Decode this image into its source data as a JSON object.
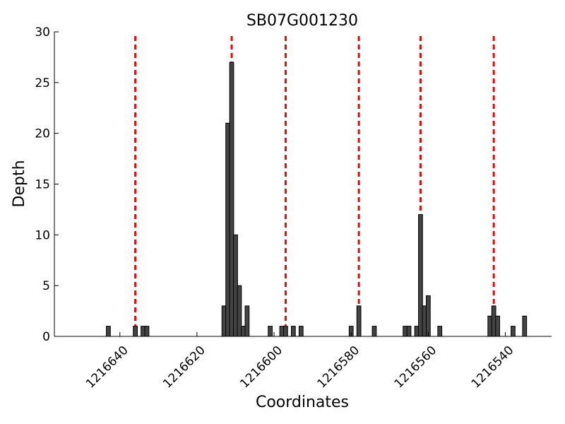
{
  "chart_data": {
    "type": "bar",
    "title": "SB07G001230",
    "xlabel": "Coordinates",
    "ylabel": "Depth",
    "x_axis_reversed": true,
    "xlim": [
      1216657,
      1216528
    ],
    "ylim": [
      0,
      30
    ],
    "grid": false,
    "legend": "none",
    "bar_color": "#444444",
    "vline_color": "#ff0000",
    "x_ticks": [
      1216640,
      1216620,
      1216600,
      1216580,
      1216560,
      1216540
    ],
    "x_tick_labels": [
      "1216640",
      "1216620",
      "1216600",
      "1216580",
      "1216560",
      "1216540"
    ],
    "y_ticks": [
      0,
      5,
      10,
      15,
      20,
      25,
      30
    ],
    "y_tick_labels": [
      "0",
      "5",
      "10",
      "15",
      "20",
      "25",
      "30"
    ],
    "vertical_lines": [
      1216636,
      1216611,
      1216597,
      1216578,
      1216562,
      1216543
    ],
    "bars": [
      {
        "x": 1216643,
        "value": 1
      },
      {
        "x": 1216636,
        "value": 1
      },
      {
        "x": 1216634,
        "value": 1
      },
      {
        "x": 1216633,
        "value": 1
      },
      {
        "x": 1216613,
        "value": 3
      },
      {
        "x": 1216612,
        "value": 21
      },
      {
        "x": 1216611,
        "value": 27
      },
      {
        "x": 1216610,
        "value": 10
      },
      {
        "x": 1216609,
        "value": 5
      },
      {
        "x": 1216608,
        "value": 1
      },
      {
        "x": 1216607,
        "value": 3
      },
      {
        "x": 1216601,
        "value": 1
      },
      {
        "x": 1216598,
        "value": 1
      },
      {
        "x": 1216597,
        "value": 1
      },
      {
        "x": 1216595,
        "value": 1
      },
      {
        "x": 1216593,
        "value": 1
      },
      {
        "x": 1216580,
        "value": 1
      },
      {
        "x": 1216578,
        "value": 3
      },
      {
        "x": 1216574,
        "value": 1
      },
      {
        "x": 1216566,
        "value": 1
      },
      {
        "x": 1216565,
        "value": 1
      },
      {
        "x": 1216563,
        "value": 1
      },
      {
        "x": 1216562,
        "value": 12
      },
      {
        "x": 1216561,
        "value": 3
      },
      {
        "x": 1216560,
        "value": 4
      },
      {
        "x": 1216557,
        "value": 1
      },
      {
        "x": 1216544,
        "value": 2
      },
      {
        "x": 1216543,
        "value": 3
      },
      {
        "x": 1216542,
        "value": 2
      },
      {
        "x": 1216538,
        "value": 1
      },
      {
        "x": 1216535,
        "value": 2
      }
    ]
  }
}
